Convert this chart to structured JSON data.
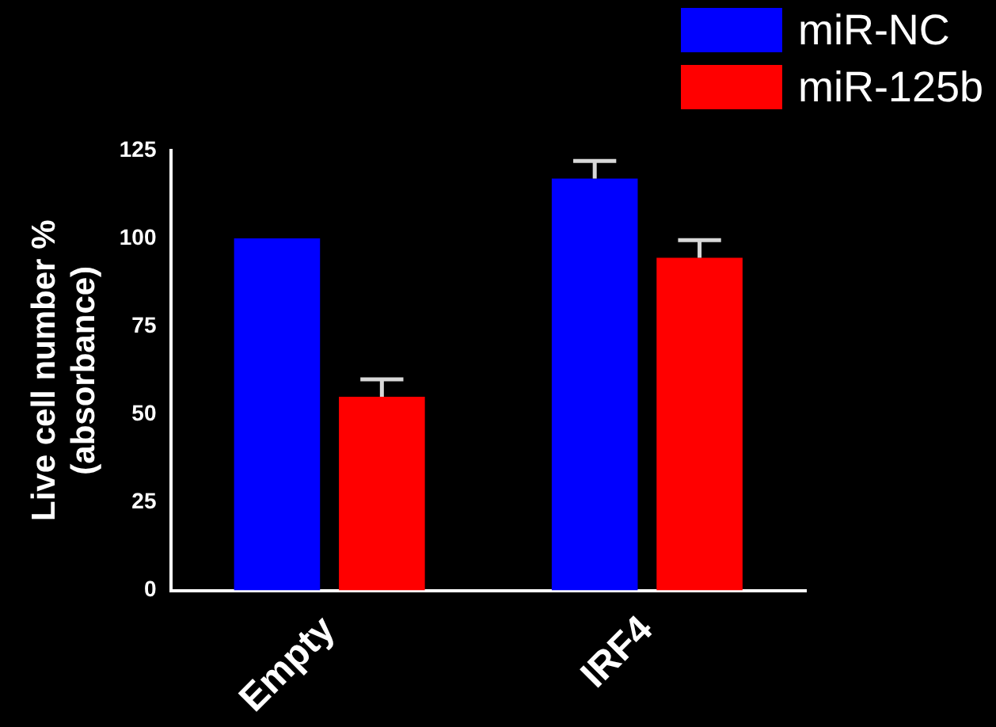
{
  "chart_data": {
    "type": "bar",
    "ylabel": "Live cell number %\n(absorbance)",
    "categories": [
      "Empty",
      "IRF4"
    ],
    "series": [
      {
        "name": "miR-NC",
        "color": "#0000ff",
        "values": [
          100,
          117
        ],
        "errors": [
          null,
          5
        ]
      },
      {
        "name": "miR-125b",
        "color": "#ff0000",
        "values": [
          55,
          94.5
        ],
        "errors": [
          5,
          5
        ]
      }
    ],
    "ylim": [
      0,
      125
    ],
    "yticks": [
      0,
      25,
      50,
      75,
      100,
      125
    ],
    "grid": false,
    "legend": "top right"
  }
}
